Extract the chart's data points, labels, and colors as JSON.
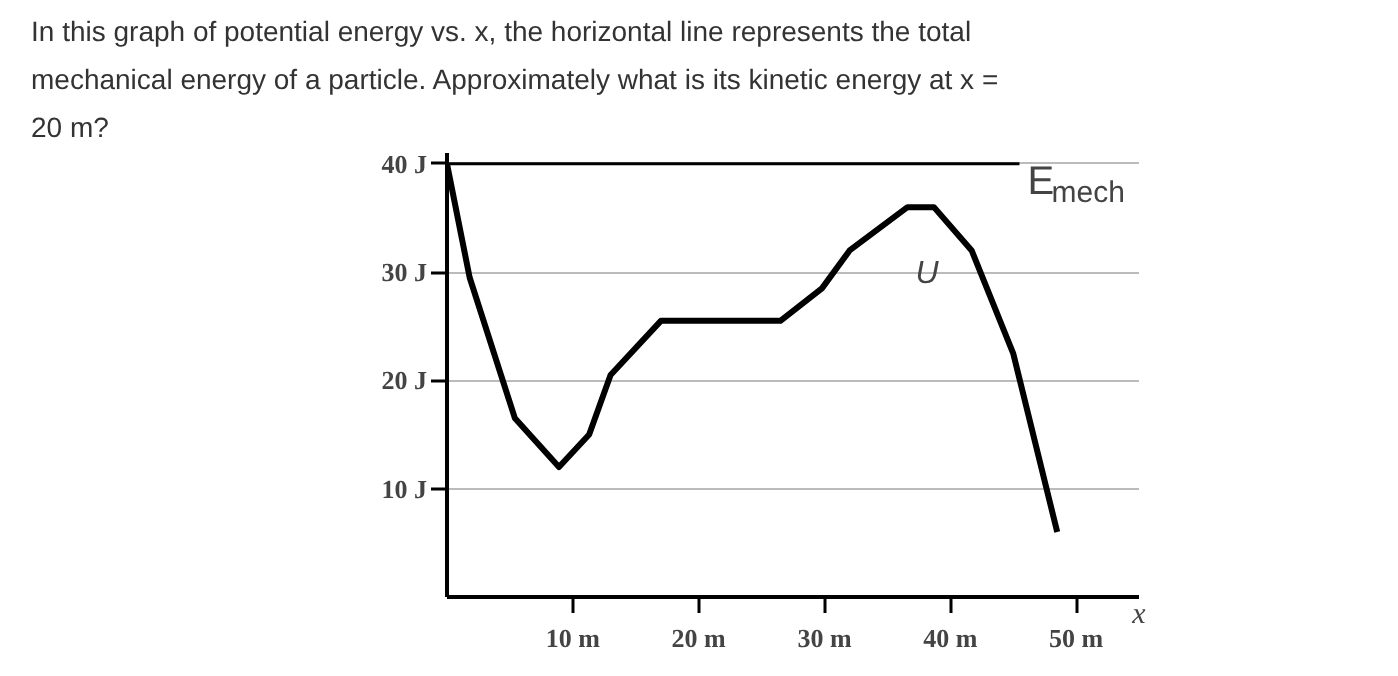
{
  "chart_data": {
    "type": "line",
    "title": "In this graph of potential energy vs. x, the horizontal line represents the total mechanical energy of a particle. Approximately what is its kinetic energy at x = 20 m?",
    "xlabel": "x",
    "series": [
      {
        "color": "#000000",
        "x": [
          0,
          1.8,
          5.4,
          8.9,
          11.3,
          13,
          17,
          26.5,
          29.8,
          32,
          36.6,
          38.7,
          41.7,
          45,
          48.5
        ],
        "values": [
          40,
          29.5,
          16.5,
          12,
          15,
          20.5,
          25.5,
          25.5,
          28.5,
          32,
          36,
          36,
          32,
          22.5,
          6
        ]
      },
      {
        "color": "#000000",
        "x": [
          0,
          45.5
        ],
        "values": [
          40,
          40
        ]
      }
    ],
    "annotations": [
      {
        "text": "U",
        "x": 36.6,
        "y": 36
      },
      {
        "text": "E$_{mech}$",
        "x": 45.5,
        "y": 40
      }
    ],
    "xlim": [
      0,
      55
    ],
    "ylim": [
      0,
      41
    ],
    "xticks": [
      {
        "value": 10,
        "label": "10 m"
      },
      {
        "value": 20,
        "label": "20 m"
      },
      {
        "value": 30,
        "label": "30 m"
      },
      {
        "value": 40,
        "label": "40 m"
      },
      {
        "value": 50,
        "label": "50 m"
      }
    ],
    "yticks": [
      {
        "value": 10,
        "label": "10 J"
      },
      {
        "value": 20,
        "label": "20 J"
      },
      {
        "value": 30,
        "label": "30 J"
      },
      {
        "value": 40,
        "label": "40 J"
      }
    ],
    "grid": "y",
    "marker": "none",
    "line_style": "solid"
  }
}
